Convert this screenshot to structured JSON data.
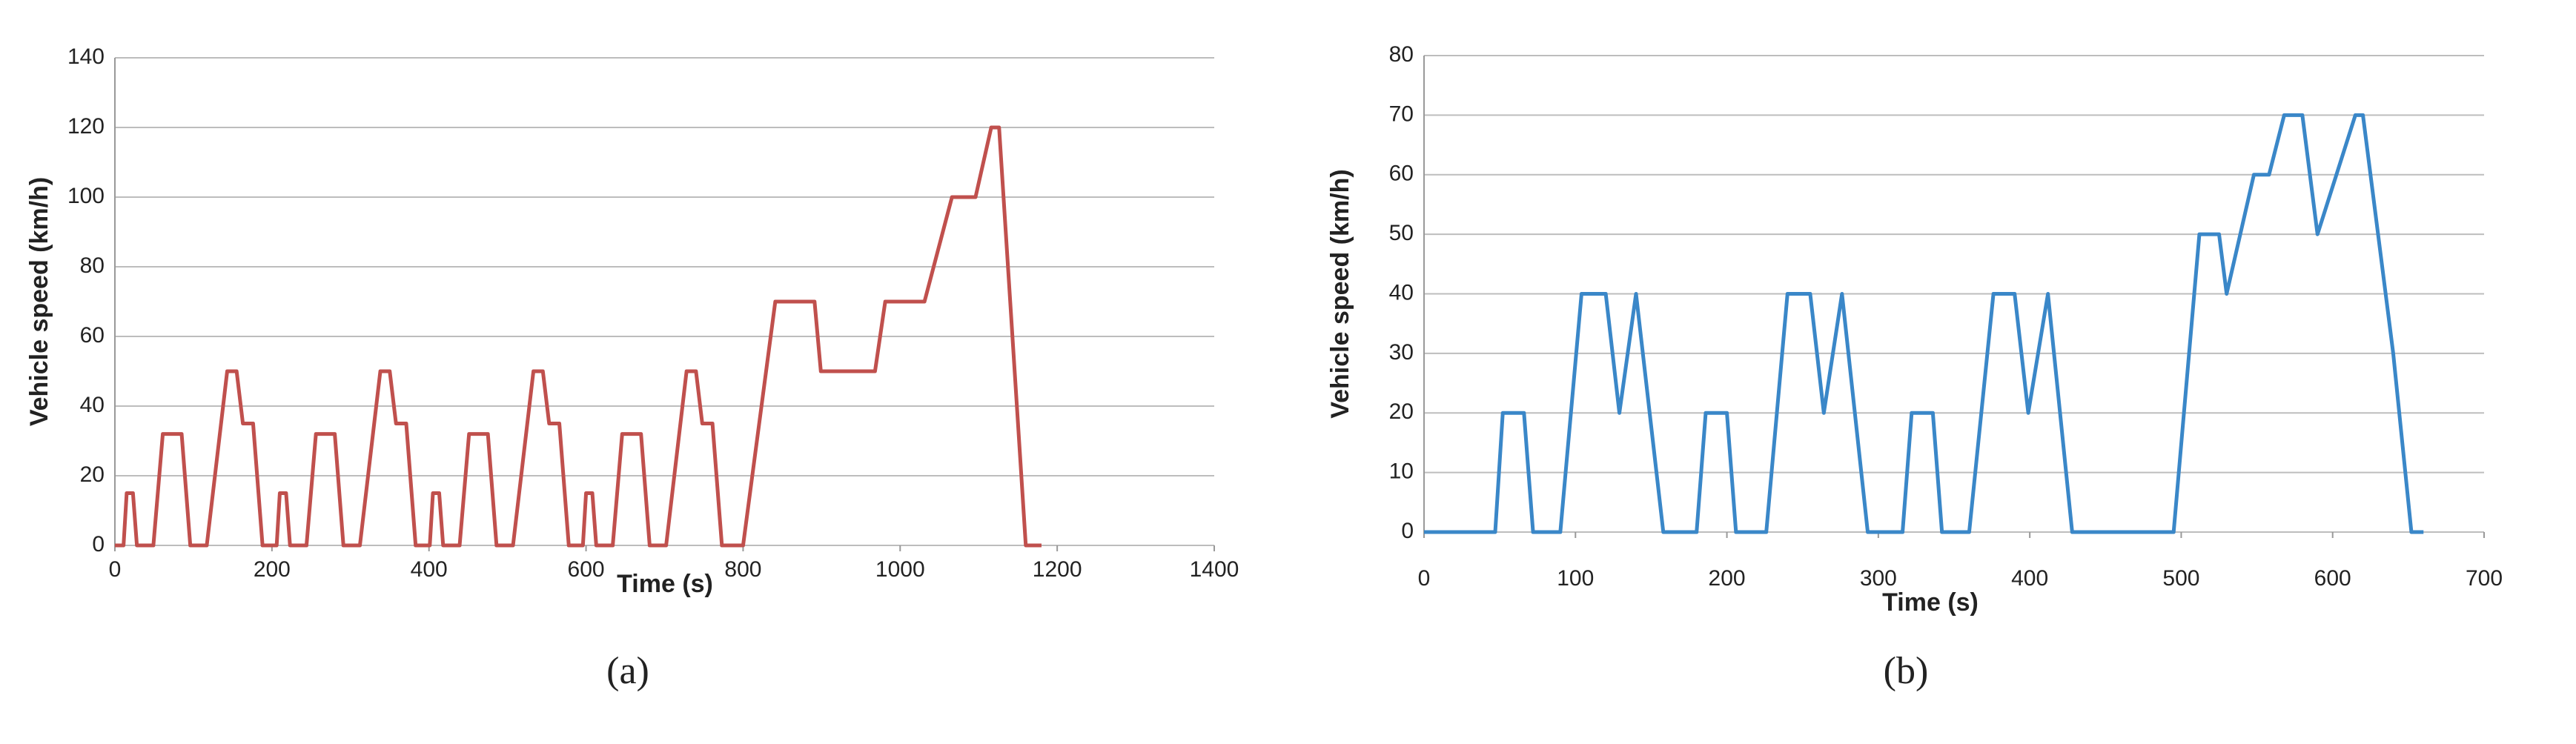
{
  "chart_data": [
    {
      "type": "line",
      "caption": "(a)",
      "xlabel": "Time (s)",
      "ylabel": "Vehicle speed (km/h)",
      "color": "#c0504d",
      "grid": true,
      "x": [
        0,
        11,
        15,
        23,
        28,
        49,
        61,
        85,
        96,
        117,
        143,
        155,
        163,
        176,
        188,
        195,
        206,
        210,
        218,
        223,
        244,
        256,
        280,
        291,
        312,
        338,
        350,
        358,
        371,
        383,
        390,
        401,
        405,
        413,
        418,
        439,
        451,
        475,
        486,
        507,
        533,
        545,
        553,
        566,
        578,
        585,
        596,
        600,
        608,
        613,
        634,
        646,
        670,
        681,
        702,
        728,
        740,
        748,
        761,
        773,
        780,
        800,
        841,
        891,
        899,
        968,
        981,
        1031,
        1066,
        1096,
        1116,
        1126,
        1160,
        1180
      ],
      "values": [
        0,
        0,
        15,
        15,
        0,
        0,
        32,
        32,
        0,
        0,
        50,
        50,
        35,
        35,
        0,
        0,
        0,
        15,
        15,
        0,
        0,
        32,
        32,
        0,
        0,
        50,
        50,
        35,
        35,
        0,
        0,
        0,
        15,
        15,
        0,
        0,
        32,
        32,
        0,
        0,
        50,
        50,
        35,
        35,
        0,
        0,
        0,
        15,
        15,
        0,
        0,
        32,
        32,
        0,
        0,
        50,
        50,
        35,
        35,
        0,
        0,
        0,
        70,
        70,
        50,
        50,
        70,
        70,
        100,
        100,
        120,
        120,
        0,
        0
      ],
      "xlim": [
        0,
        1400
      ],
      "xticks": [
        0,
        200,
        400,
        600,
        800,
        1000,
        1200,
        1400
      ],
      "ylim": [
        0,
        140
      ],
      "yticks": [
        0,
        20,
        40,
        60,
        80,
        100,
        120,
        140
      ]
    },
    {
      "type": "line",
      "caption": "(b)",
      "xlabel": "Time (s)",
      "ylabel": "Vehicle speed (km/h)",
      "color": "#3a87c8",
      "grid": true,
      "x": [
        0,
        47,
        52,
        66,
        72,
        90,
        104,
        120,
        129,
        140,
        158,
        180,
        186,
        200,
        206,
        226,
        240,
        255,
        264,
        276,
        293,
        316,
        322,
        336,
        342,
        360,
        376,
        390,
        399,
        412,
        428,
        495,
        512,
        525,
        530,
        548,
        558,
        568,
        580,
        590,
        615,
        620,
        640,
        652,
        660
      ],
      "values": [
        0,
        0,
        20,
        20,
        0,
        0,
        40,
        40,
        20,
        40,
        0,
        0,
        20,
        20,
        0,
        0,
        40,
        40,
        20,
        40,
        0,
        0,
        20,
        20,
        0,
        0,
        40,
        40,
        20,
        40,
        0,
        0,
        50,
        50,
        40,
        60,
        60,
        70,
        70,
        50,
        70,
        70,
        30,
        0,
        0
      ],
      "xlim": [
        0,
        700
      ],
      "xticks": [
        0,
        100,
        200,
        300,
        400,
        500,
        600,
        700
      ],
      "ylim": [
        0,
        80
      ],
      "yticks": [
        0,
        10,
        20,
        30,
        40,
        50,
        60,
        70,
        80
      ]
    }
  ]
}
